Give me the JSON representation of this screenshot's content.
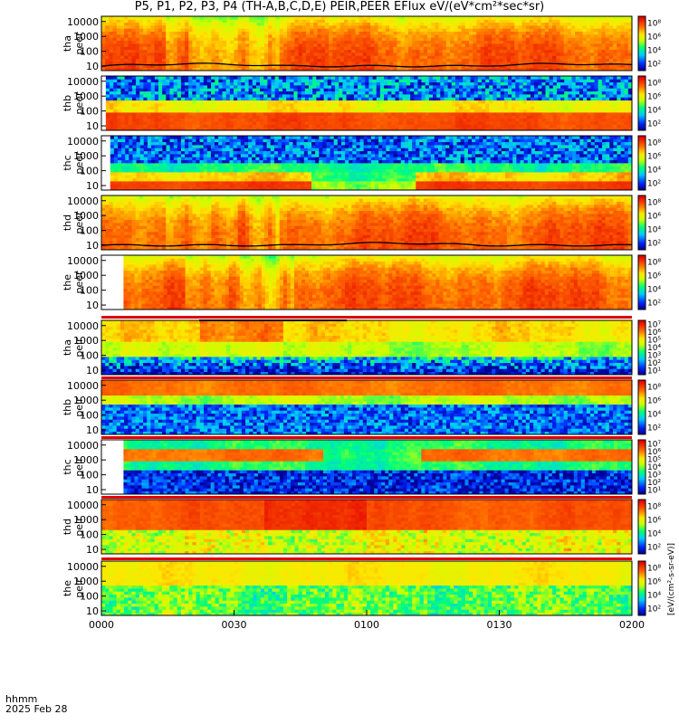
{
  "title": "P5, P1, P2, P3, P4 (TH-A,B,C,D,E) PEIR,PEER EFlux eV/(eV*cm²*sec*sr)",
  "footer": {
    "label": "hhmm",
    "date": "2025 Feb 28"
  },
  "chart_data": {
    "type": "heatmap",
    "x_ticks": [
      "0000",
      "0030",
      "0100",
      "0130",
      "0200"
    ],
    "x_range_minutes": [
      0,
      120
    ],
    "y_ticks": [
      "10",
      "100",
      "1000",
      "10000"
    ],
    "y_scale": "log",
    "y_unit": "eV",
    "colorbar_label": "[eV/(cm²-s-sr-eV)]",
    "panels": [
      {
        "probe": "tha",
        "species": "peer",
        "cbar_ticks": [
          "10²",
          "10⁴",
          "10⁶",
          "10⁸"
        ],
        "profile": "elec_high",
        "start_min": 0,
        "line": true
      },
      {
        "probe": "thb",
        "species": "peer",
        "cbar_ticks": [
          "10²",
          "10⁴",
          "10⁶",
          "10⁸"
        ],
        "profile": "elec_band",
        "start_min": 1,
        "line": false
      },
      {
        "probe": "thc",
        "species": "peer",
        "cbar_ticks": [
          "10²",
          "10⁴",
          "10⁶",
          "10⁸"
        ],
        "profile": "elec_low",
        "start_min": 2,
        "line": false
      },
      {
        "probe": "thd",
        "species": "peer",
        "cbar_ticks": [
          "10²",
          "10⁴",
          "10⁶",
          "10⁸"
        ],
        "profile": "elec_high",
        "start_min": 0,
        "line": true
      },
      {
        "probe": "the",
        "species": "peer",
        "cbar_ticks": [
          "10²",
          "10⁴",
          "10⁶",
          "10⁸"
        ],
        "profile": "elec_high",
        "start_min": 5,
        "line": false
      },
      {
        "probe": "tha",
        "species": "peir",
        "cbar_ticks": [
          "10¹",
          "10²",
          "10³",
          "10⁴",
          "10⁵",
          "10⁶",
          "10⁷"
        ],
        "profile": "ion_mid",
        "start_min": 0,
        "line": false
      },
      {
        "probe": "thb",
        "species": "peir",
        "cbar_ticks": [
          "10²",
          "10⁴",
          "10⁶",
          "10⁸"
        ],
        "profile": "ion_band",
        "start_min": 0,
        "line": false
      },
      {
        "probe": "thc",
        "species": "peir",
        "cbar_ticks": [
          "10¹",
          "10²",
          "10³",
          "10⁴",
          "10⁵",
          "10⁶",
          "10⁷"
        ],
        "profile": "ion_band_gap",
        "start_min": 5,
        "line": false
      },
      {
        "probe": "thd",
        "species": "peir",
        "cbar_ticks": [
          "10²",
          "10⁴",
          "10⁶",
          "10⁸"
        ],
        "profile": "ion_high",
        "start_min": 0,
        "line": false
      },
      {
        "probe": "the",
        "species": "peir",
        "cbar_ticks": [
          "10²",
          "10⁴",
          "10⁶",
          "10⁸"
        ],
        "profile": "ion_low",
        "start_min": 0,
        "line": false
      }
    ]
  }
}
